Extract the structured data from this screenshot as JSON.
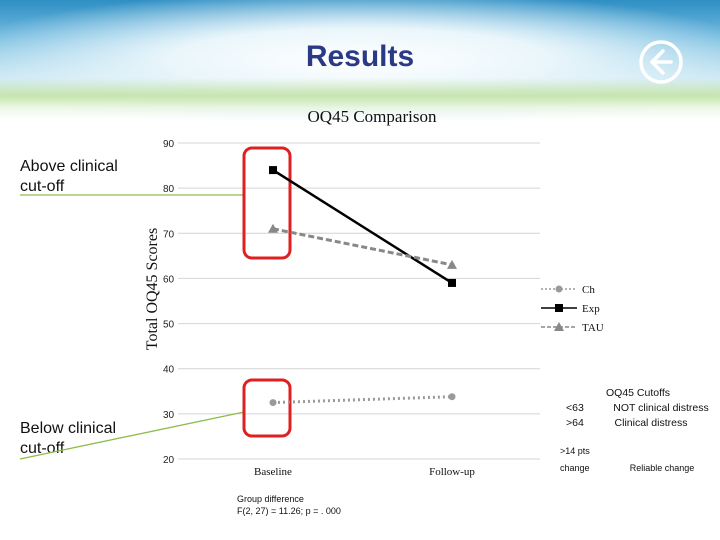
{
  "slide": {
    "title": "Results",
    "above_label": "Above clinical\ncut-off",
    "below_label": "Below clinical\ncut-off",
    "nav_icon": "back-arrow-circle-icon",
    "colors": {
      "title": "#2a3a86",
      "highlight_box": "#e02020",
      "annotation_line": "#8cbd4a"
    }
  },
  "chart_data": {
    "type": "line",
    "title": "OQ45 Comparison",
    "ylabel": "Total OQ45 Scores",
    "xlabel": "",
    "categories": [
      "Baseline",
      "Follow-up"
    ],
    "ylim": [
      20,
      90
    ],
    "yticks": [
      90,
      80,
      70,
      60,
      50,
      40,
      30,
      20
    ],
    "yticks_labels": [
      "90",
      "80",
      "70",
      "60",
      "50",
      "40",
      "30",
      "20"
    ],
    "grid": true,
    "legend_position": "right",
    "series": [
      {
        "name": "Ch",
        "values": [
          32.5,
          33.8
        ],
        "marker": "circle",
        "style": "dotted",
        "color": "#9a9a9a"
      },
      {
        "name": "Exp",
        "values": [
          84,
          59
        ],
        "marker": "square",
        "style": "solid",
        "color": "#000000"
      },
      {
        "name": "TAU",
        "values": [
          71,
          63
        ],
        "marker": "triangle",
        "style": "dashed",
        "color": "#888888"
      }
    ],
    "annotations": {
      "group_difference_label": "Group difference",
      "group_difference_stat": "F(2, 27) = 11.26; p = . 000"
    }
  },
  "cutoffs": {
    "title": "OQ45 Cutoffs",
    "rows": [
      {
        "value": "<63",
        "meaning": "NOT clinical distress"
      },
      {
        "value": ">64",
        "meaning": "Clinical distress"
      }
    ],
    "reliable_value_line1": ">14 pts",
    "reliable_value_line2": "change",
    "reliable_meaning": "Reliable change"
  }
}
